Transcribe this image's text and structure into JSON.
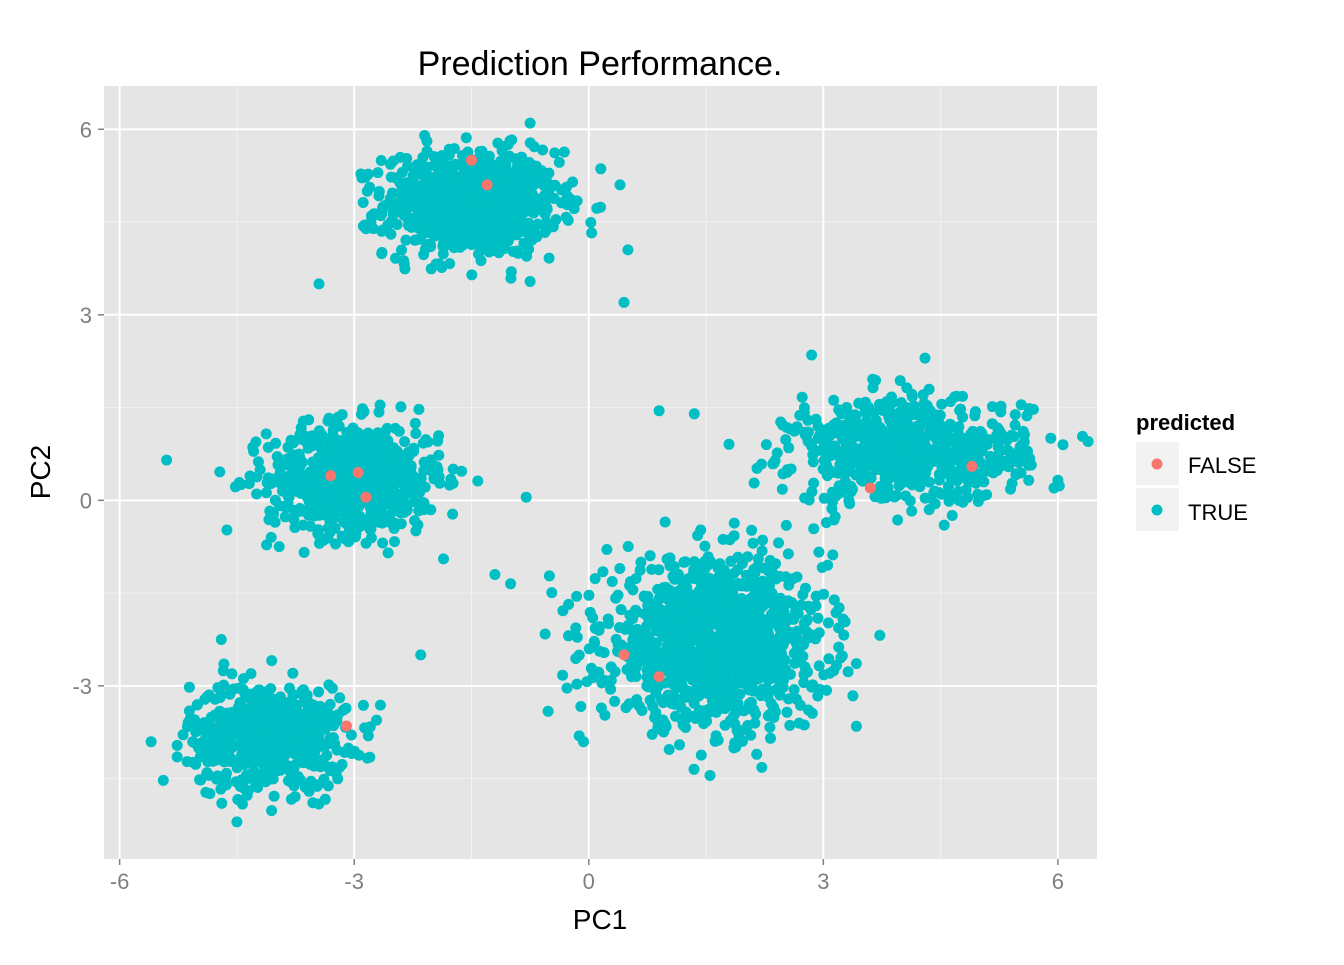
{
  "chart_data": {
    "type": "scatter",
    "title": "Prediction Performance.",
    "xlabel": "PC1",
    "ylabel": "PC2",
    "xlim": [
      -6.2,
      6.5
    ],
    "ylim": [
      -5.8,
      6.7
    ],
    "x_ticks": [
      -6,
      -3,
      0,
      3,
      6
    ],
    "y_ticks": [
      -3,
      0,
      3,
      6
    ],
    "x_tick_labels": [
      "-6",
      "-3",
      "0",
      "3",
      "6"
    ],
    "y_tick_labels": [
      "-3",
      "0",
      "3",
      "6"
    ],
    "grid": true,
    "legend": {
      "title": "predicted",
      "position": "right",
      "entries": [
        {
          "label": "FALSE",
          "color": "#F8766D"
        },
        {
          "label": "TRUE",
          "color": "#00BFC4"
        }
      ]
    },
    "clusters": [
      {
        "center": [
          -1.5,
          4.8
        ],
        "spread": [
          0.55,
          0.42
        ],
        "n": 900
      },
      {
        "center": [
          -3.0,
          0.35
        ],
        "spread": [
          0.55,
          0.45
        ],
        "n": 700
      },
      {
        "center": [
          -4.1,
          -3.8
        ],
        "spread": [
          0.5,
          0.42
        ],
        "n": 650
      },
      {
        "center": [
          1.6,
          -2.3
        ],
        "spread": [
          0.7,
          0.65
        ],
        "n": 1200
      },
      {
        "center": [
          4.1,
          0.8
        ],
        "spread": [
          0.75,
          0.42
        ],
        "n": 700
      }
    ],
    "series": [
      {
        "name": "FALSE",
        "color": "#F8766D",
        "points": [
          [
            -1.5,
            5.5
          ],
          [
            -3.1,
            -3.65
          ],
          [
            -2.95,
            0.45
          ],
          [
            -2.85,
            0.05
          ],
          [
            0.9,
            -2.85
          ],
          [
            0.45,
            -2.5
          ],
          [
            3.6,
            0.2
          ],
          [
            -1.3,
            5.1
          ],
          [
            4.9,
            0.55
          ],
          [
            -3.3,
            0.4
          ]
        ]
      },
      {
        "name": "TRUE",
        "color": "#00BFC4",
        "points": [
          [
            -5.4,
            0.65
          ],
          [
            -0.8,
            0.05
          ],
          [
            0.9,
            1.45
          ],
          [
            1.35,
            1.4
          ],
          [
            -1.2,
            -1.2
          ],
          [
            -1.0,
            -1.35
          ],
          [
            -4.7,
            -2.25
          ],
          [
            -2.15,
            -2.5
          ],
          [
            5.95,
            0.2
          ],
          [
            1.55,
            -4.45
          ],
          [
            -4.5,
            -5.2
          ],
          [
            -3.45,
            3.5
          ],
          [
            0.45,
            3.2
          ],
          [
            -2.1,
            5.9
          ],
          [
            -0.75,
            6.1
          ],
          [
            0.4,
            5.1
          ],
          [
            0.5,
            4.05
          ],
          [
            2.85,
            2.35
          ],
          [
            4.3,
            2.3
          ],
          [
            0.05,
            -1.9
          ]
        ]
      }
    ]
  }
}
